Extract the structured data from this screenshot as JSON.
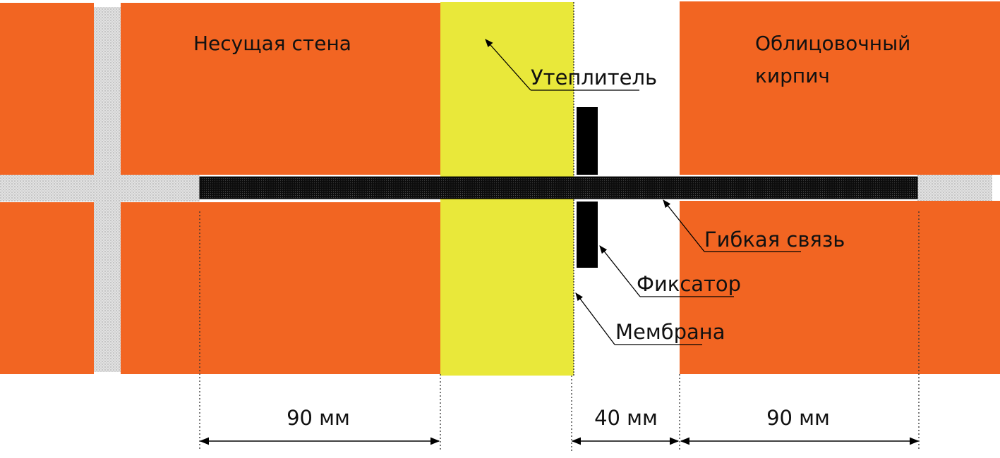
{
  "labels": {
    "load_bearing_wall": "Несущая стена",
    "facing_brick_line1": "Облицовочный",
    "facing_brick_line2": "кирпич",
    "insulation": "Утеплитель",
    "flexible_tie": "Гибкая связь",
    "fixator": "Фиксатор",
    "membrane": "Мембрана"
  },
  "dimensions": {
    "wall_width": "90 мм",
    "air_gap": "40 мм",
    "facing_width": "90 мм"
  },
  "colors": {
    "brick": "#f26522",
    "mortar": "#dcdcdc",
    "insulation": "#e9e83a",
    "tie": "#111111",
    "line": "#000000"
  }
}
